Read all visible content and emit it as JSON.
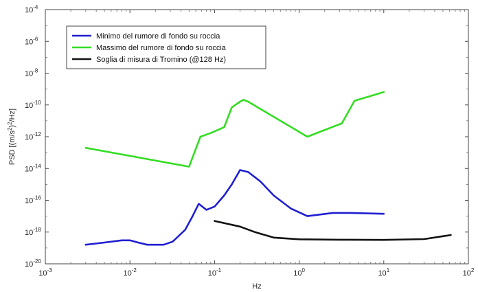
{
  "chart_data": {
    "type": "line",
    "xscale": "log",
    "yscale": "log",
    "xlim": [
      0.001,
      100
    ],
    "ylim": [
      1e-20,
      0.0001
    ],
    "xlabel": "Hz",
    "ylabel_parts": [
      "PSD [(m/s",
      "2",
      ")",
      "2",
      "/Hz]"
    ],
    "xticks": [
      {
        "value": 0.001,
        "base": "10",
        "exp": "-3"
      },
      {
        "value": 0.01,
        "base": "10",
        "exp": "-2"
      },
      {
        "value": 0.1,
        "base": "10",
        "exp": "-1"
      },
      {
        "value": 1,
        "base": "10",
        "exp": "0"
      },
      {
        "value": 10,
        "base": "10",
        "exp": "1"
      },
      {
        "value": 100,
        "base": "10",
        "exp": "2"
      }
    ],
    "yticks": [
      {
        "value": 1e-20,
        "base": "10",
        "exp": "-20"
      },
      {
        "value": 1e-18,
        "base": "10",
        "exp": "-18"
      },
      {
        "value": 1e-16,
        "base": "10",
        "exp": "-16"
      },
      {
        "value": 1e-14,
        "base": "10",
        "exp": "-14"
      },
      {
        "value": 1e-12,
        "base": "10",
        "exp": "-12"
      },
      {
        "value": 1e-10,
        "base": "10",
        "exp": "-10"
      },
      {
        "value": 1e-08,
        "base": "10",
        "exp": "-8"
      },
      {
        "value": 1e-06,
        "base": "10",
        "exp": "-6"
      },
      {
        "value": 0.0001,
        "base": "10",
        "exp": "-4"
      }
    ],
    "legend_position": "top-left",
    "series": [
      {
        "name": "Minimo del rumore di fondo su roccia",
        "color": "#1f1fd0",
        "points": [
          [
            0.003,
            1.6e-19
          ],
          [
            0.005,
            2.2e-19
          ],
          [
            0.008,
            3e-19
          ],
          [
            0.01,
            3e-19
          ],
          [
            0.0125,
            2.2e-19
          ],
          [
            0.016,
            1.6e-19
          ],
          [
            0.025,
            1.6e-19
          ],
          [
            0.032,
            2.5e-19
          ],
          [
            0.045,
            1.4e-18
          ],
          [
            0.055,
            1e-17
          ],
          [
            0.065,
            6e-17
          ],
          [
            0.08,
            2.5e-17
          ],
          [
            0.1,
            4e-17
          ],
          [
            0.13,
            2e-16
          ],
          [
            0.16,
            1e-15
          ],
          [
            0.2,
            8e-15
          ],
          [
            0.25,
            6e-15
          ],
          [
            0.35,
            1.5e-15
          ],
          [
            0.5,
            2e-16
          ],
          [
            0.8,
            3e-17
          ],
          [
            1.25,
            1e-17
          ],
          [
            2.5,
            1.6e-17
          ],
          [
            4,
            1.6e-17
          ],
          [
            10,
            1.4e-17
          ]
        ]
      },
      {
        "name": "Massimo del rumore di fondo su roccia",
        "color": "#33dd22",
        "points": [
          [
            0.003,
            2e-13
          ],
          [
            0.05,
            1.3e-14
          ],
          [
            0.068,
            1e-12
          ],
          [
            0.09,
            1.7e-12
          ],
          [
            0.13,
            4e-12
          ],
          [
            0.16,
            7e-11
          ],
          [
            0.2,
            1.6e-10
          ],
          [
            0.22,
            2.1e-10
          ],
          [
            0.25,
            1.6e-10
          ],
          [
            1.25,
            1e-12
          ],
          [
            3.2,
            7e-12
          ],
          [
            4.5,
            1.8e-10
          ],
          [
            10,
            6.5e-10
          ]
        ]
      },
      {
        "name": "Soglia di misura di Tromino (@128 Hz)",
        "color": "#111111",
        "points": [
          [
            0.1,
            5e-18
          ],
          [
            0.2,
            2.2e-18
          ],
          [
            0.3,
            1e-18
          ],
          [
            0.5,
            4.5e-19
          ],
          [
            1,
            3.5e-19
          ],
          [
            3,
            3.3e-19
          ],
          [
            10,
            3.2e-19
          ],
          [
            30,
            3.6e-19
          ],
          [
            50,
            5.5e-19
          ],
          [
            62,
            6.5e-19
          ]
        ]
      }
    ]
  }
}
